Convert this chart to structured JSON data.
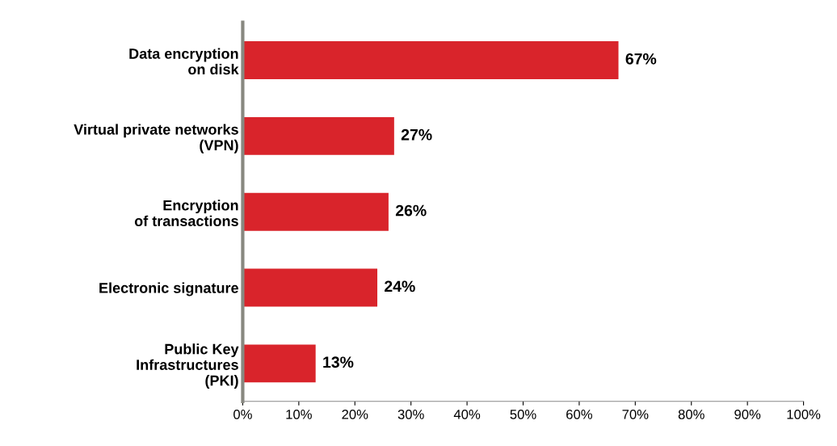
{
  "chart_data": {
    "type": "bar",
    "orientation": "horizontal",
    "categories": [
      "Data encryption\non disk",
      "Virtual private networks\n(VPN)",
      "Encryption\nof transactions",
      "Electronic signature",
      "Public Key\nInfrastructures\n(PKI)"
    ],
    "values": [
      67,
      27,
      26,
      24,
      13
    ],
    "color": "#d9242b",
    "value_labels": [
      "67%",
      "27%",
      "26%",
      "24%",
      "13%"
    ],
    "xlim": [
      0,
      100
    ],
    "xticks": [
      {
        "value": 0,
        "label": "0%"
      },
      {
        "value": 10,
        "label": "10%"
      },
      {
        "value": 20,
        "label": "20%"
      },
      {
        "value": 30,
        "label": "30%"
      },
      {
        "value": 40,
        "label": "40%"
      },
      {
        "value": 50,
        "label": "50%"
      },
      {
        "value": 60,
        "label": "60%"
      },
      {
        "value": 70,
        "label": "70%"
      },
      {
        "value": 80,
        "label": "80%"
      },
      {
        "value": 90,
        "label": "90%"
      },
      {
        "value": 100,
        "label": "100%"
      }
    ],
    "grid": false,
    "legend": false
  }
}
